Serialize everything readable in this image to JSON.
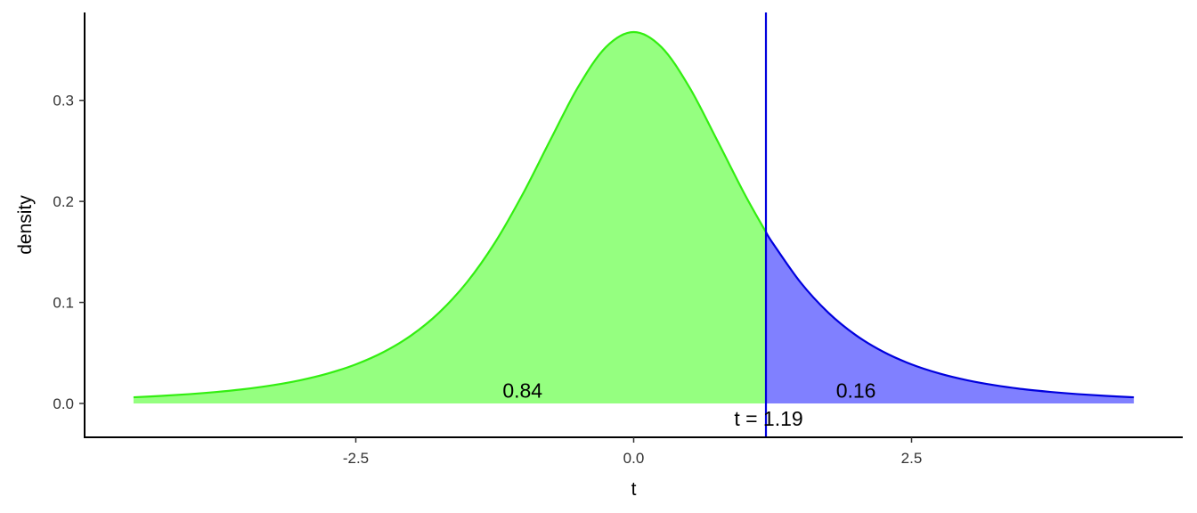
{
  "chart_data": {
    "type": "area",
    "title": "",
    "xlabel": "t",
    "ylabel": "density",
    "xlim": [
      -4.94,
      4.94
    ],
    "ylim": [
      -0.0335,
      0.387
    ],
    "grid": false,
    "x_ticks": [
      -2.5,
      0.0,
      2.5
    ],
    "x_tick_labels": [
      "-2.5",
      "0.0",
      "2.5"
    ],
    "y_ticks": [
      0.0,
      0.1,
      0.2,
      0.3
    ],
    "y_tick_labels": [
      "0.0",
      "0.1",
      "0.2",
      "0.3"
    ],
    "curve": {
      "x": [
        -4.5,
        -4.25,
        -4.0,
        -3.75,
        -3.5,
        -3.25,
        -3.0,
        -2.75,
        -2.5,
        -2.25,
        -2.0,
        -1.75,
        -1.5,
        -1.25,
        -1.0,
        -0.75,
        -0.5,
        -0.25,
        0.0,
        0.25,
        0.5,
        0.75,
        1.0,
        1.19,
        1.25,
        1.5,
        1.75,
        2.0,
        2.25,
        2.5,
        2.75,
        3.0,
        3.25,
        3.5,
        3.75,
        4.0,
        4.25,
        4.5
      ],
      "y": [
        0.0061,
        0.0075,
        0.0092,
        0.0114,
        0.0142,
        0.018,
        0.023,
        0.0297,
        0.0387,
        0.0509,
        0.0675,
        0.09,
        0.12,
        0.1589,
        0.2068,
        0.2607,
        0.3132,
        0.3527,
        0.3676,
        0.3527,
        0.3132,
        0.2607,
        0.2068,
        0.1696,
        0.1589,
        0.12,
        0.09,
        0.0675,
        0.0509,
        0.0387,
        0.0297,
        0.023,
        0.018,
        0.0142,
        0.0114,
        0.0092,
        0.0075,
        0.0061
      ]
    },
    "threshold": 1.19,
    "threshold_label": "t = 1.19",
    "regions": [
      {
        "label": "0.84",
        "from": -4.5,
        "to": 1.19,
        "fill": "#95ff80",
        "line": "#33ee11",
        "label_x": -1.0,
        "label_y": 0.013
      },
      {
        "label": "0.16",
        "from": 1.19,
        "to": 4.5,
        "fill": "#8080ff",
        "line": "#0000dd",
        "label_x": 2.0,
        "label_y": 0.013
      }
    ],
    "threshold_color": "#0000dd"
  }
}
